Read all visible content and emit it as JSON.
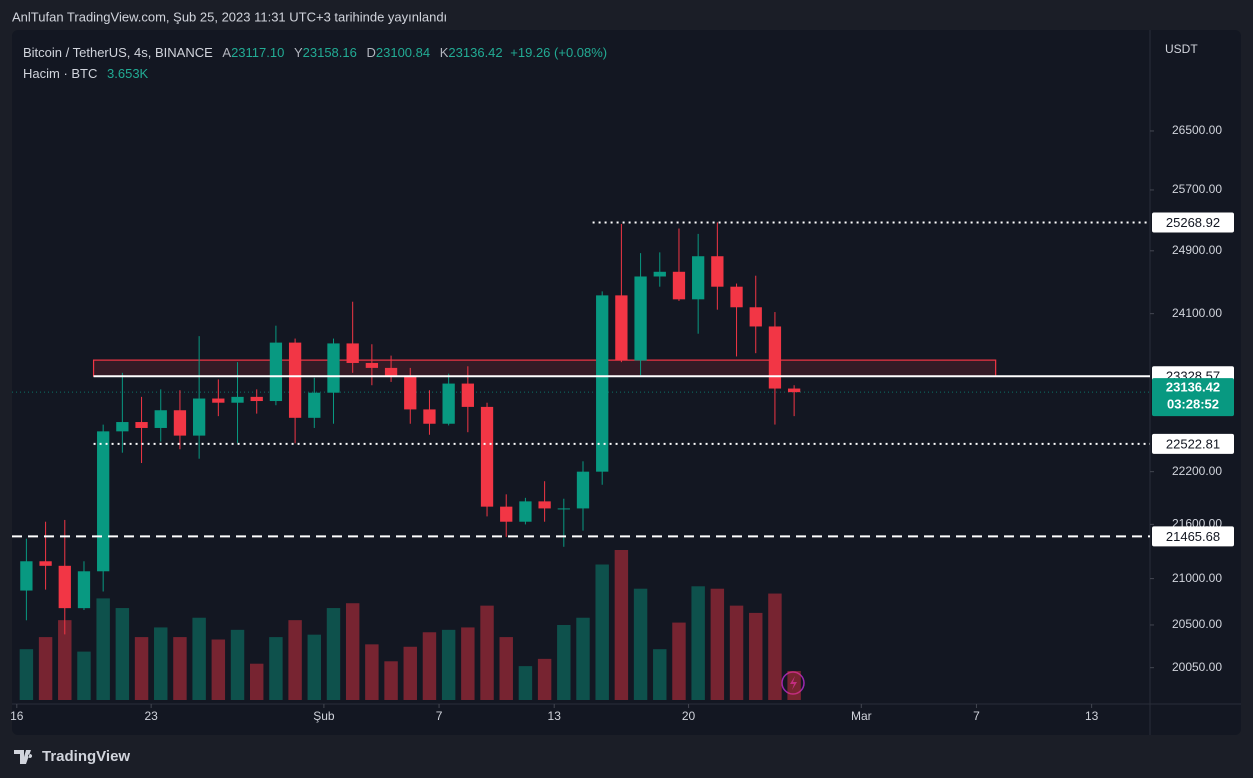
{
  "header": {
    "published": "AnlTufan TradingView.com, Şub 25, 2023 11:31 UTC+3 tarihinde yayınlandı"
  },
  "legend": {
    "symbol": "Bitcoin / TetherUS, 4s, BINANCE",
    "open_label": "A",
    "open": "23117.10",
    "high_label": "Y",
    "high": "23158.16",
    "low_label": "D",
    "low": "23100.84",
    "close_label": "K",
    "close": "23136.42",
    "change": "+19.26 (+0.08%)",
    "volume_label": "Hacim · BTC",
    "volume": "3.653K"
  },
  "chart_data": {
    "type": "candlestick",
    "currency": "USDT",
    "log_scale": true,
    "up_color": "#089981",
    "down_color": "#f23645",
    "x": [
      "2023-01-16",
      "2023-01-17",
      "2023-01-18",
      "2023-01-19",
      "2023-01-20",
      "2023-01-21",
      "2023-01-22",
      "2023-01-23",
      "2023-01-24",
      "2023-01-25",
      "2023-01-26",
      "2023-01-27",
      "2023-01-28",
      "2023-01-29",
      "2023-01-30",
      "2023-01-31",
      "2023-02-01",
      "2023-02-02",
      "2023-02-03",
      "2023-02-04",
      "2023-02-05",
      "2023-02-06",
      "2023-02-07",
      "2023-02-08",
      "2023-02-09",
      "2023-02-10",
      "2023-02-11",
      "2023-02-12",
      "2023-02-13",
      "2023-02-14",
      "2023-02-15",
      "2023-02-16",
      "2023-02-17",
      "2023-02-18",
      "2023-02-19",
      "2023-02-20",
      "2023-02-21",
      "2023-02-22",
      "2023-02-23",
      "2023-02-24",
      "2023-02-25"
    ],
    "open": [
      20870,
      21190,
      21140,
      20680,
      21080,
      22670,
      22780,
      22710,
      22920,
      22620,
      23060,
      23010,
      23080,
      23030,
      23740,
      22830,
      23130,
      23730,
      23490,
      23430,
      23330,
      22930,
      22760,
      23240,
      22960,
      21800,
      21630,
      21860,
      21780,
      21780,
      22200,
      24330,
      23520,
      24570,
      24630,
      24280,
      24830,
      24440,
      24180,
      23940,
      23180
    ],
    "high": [
      21440,
      21630,
      21650,
      21190,
      22750,
      23370,
      23080,
      23170,
      23160,
      23820,
      23290,
      23500,
      23170,
      23950,
      23790,
      23310,
      23790,
      24250,
      23720,
      23580,
      23430,
      23160,
      23360,
      23450,
      23010,
      21940,
      21900,
      22090,
      21890,
      22320,
      24380,
      25250,
      24870,
      24880,
      25190,
      25120,
      25270,
      24480,
      24580,
      24120,
      23220
    ],
    "low": [
      20550,
      20880,
      20400,
      20660,
      20860,
      22420,
      22300,
      22550,
      22460,
      22350,
      22850,
      22530,
      22880,
      22980,
      22530,
      22710,
      22760,
      23370,
      23220,
      23260,
      22760,
      22630,
      22740,
      22660,
      21690,
      21460,
      21600,
      21630,
      21350,
      21530,
      22050,
      23500,
      23340,
      24440,
      24260,
      23850,
      24150,
      23570,
      23610,
      22750,
      22850
    ],
    "close": [
      21190,
      21140,
      20680,
      21080,
      22670,
      22780,
      22710,
      22920,
      22620,
      23060,
      23010,
      23080,
      23030,
      23740,
      22830,
      23130,
      23730,
      23490,
      23430,
      23330,
      22930,
      22760,
      23240,
      22960,
      21800,
      21630,
      21860,
      21780,
      21780,
      22200,
      24330,
      23520,
      24570,
      24630,
      24280,
      24830,
      24440,
      24180,
      23940,
      23180,
      23136.42
    ],
    "volume": [
      210,
      260,
      330,
      200,
      420,
      380,
      260,
      300,
      260,
      340,
      250,
      290,
      150,
      260,
      330,
      270,
      380,
      400,
      230,
      160,
      220,
      280,
      290,
      300,
      390,
      260,
      140,
      170,
      310,
      340,
      560,
      620,
      460,
      210,
      320,
      470,
      460,
      390,
      360,
      440,
      120
    ],
    "xlim": [
      "2023-01-15T18:00",
      "2023-03-16T01:00"
    ],
    "ylim": [
      19716,
      27783
    ],
    "yticks": [
      {
        "value": 26500,
        "label": "26500.00"
      },
      {
        "value": 25700,
        "label": "25700.00"
      },
      {
        "value": 24900,
        "label": "24900.00"
      },
      {
        "value": 24100,
        "label": "24100.00"
      },
      {
        "value": 22200,
        "label": "22200.00"
      },
      {
        "value": 21600,
        "label": "21600.00"
      },
      {
        "value": 21000,
        "label": "21000.00"
      },
      {
        "value": 20500,
        "label": "20500.00"
      },
      {
        "value": 20050,
        "label": "20050.00"
      }
    ],
    "xticks": [
      {
        "value": "2023-01-16",
        "label": "16"
      },
      {
        "value": "2023-01-23",
        "label": "23"
      },
      {
        "value": "2023-02-01",
        "label": "Şub"
      },
      {
        "value": "2023-02-07",
        "label": "7"
      },
      {
        "value": "2023-02-13",
        "label": "13"
      },
      {
        "value": "2023-02-20",
        "label": "20"
      },
      {
        "value": "2023-03-01",
        "label": "Mar"
      },
      {
        "value": "2023-03-07",
        "label": "7"
      },
      {
        "value": "2023-03-13",
        "label": "13"
      }
    ],
    "levels": [
      {
        "value": 25268.92,
        "style": "dotted",
        "start": "2023-02-15"
      },
      {
        "value": 23328.57,
        "style": "solid",
        "start": "2023-01-20"
      },
      {
        "value": 22522.81,
        "style": "dotted",
        "start": "2023-01-20"
      },
      {
        "value": 21465.68,
        "style": "dashed",
        "start": "2023-01-15T18:00"
      }
    ],
    "zone": {
      "x": [
        "2023-01-20",
        "2023-03-08"
      ],
      "y": [
        23330,
        23525
      ],
      "color": "#f23645"
    },
    "last_price": 23136.42,
    "countdown": "03:28:52"
  },
  "footer": {
    "brand": "TradingView"
  }
}
